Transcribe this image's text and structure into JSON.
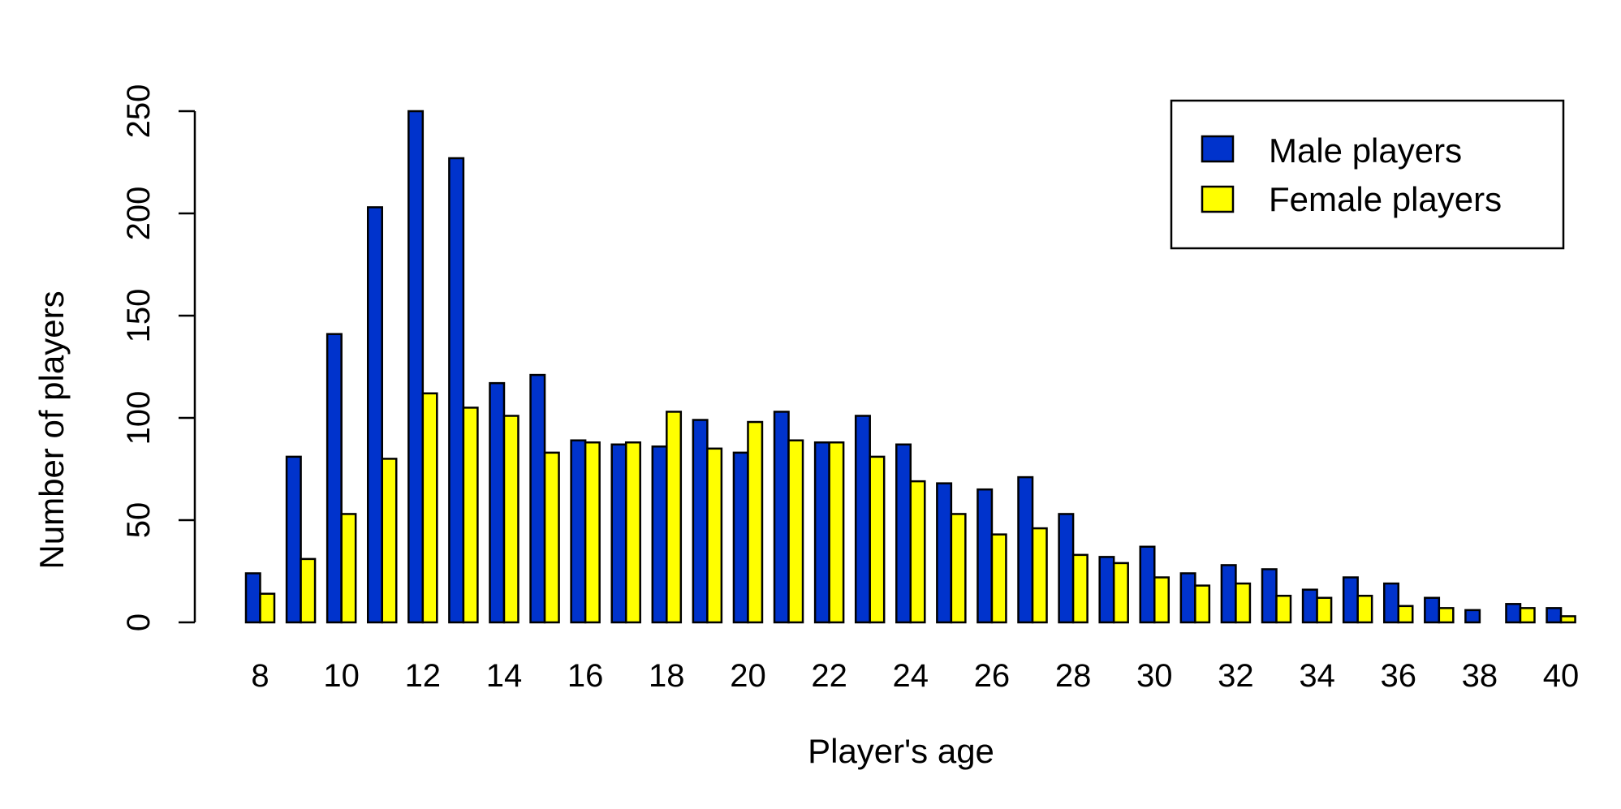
{
  "chart_data": {
    "type": "bar",
    "xlabel": "Player's age",
    "ylabel": "Number of players",
    "ylim": [
      0,
      250
    ],
    "y_ticks": [
      0,
      50,
      100,
      150,
      200,
      250
    ],
    "x_tick_labels": [
      "8",
      "10",
      "12",
      "14",
      "16",
      "18",
      "20",
      "22",
      "24",
      "26",
      "28",
      "30",
      "32",
      "34",
      "36",
      "38",
      "40"
    ],
    "categories": [
      8,
      9,
      10,
      11,
      12,
      13,
      14,
      15,
      16,
      17,
      18,
      19,
      20,
      21,
      22,
      23,
      24,
      25,
      26,
      27,
      28,
      29,
      30,
      31,
      32,
      33,
      34,
      35,
      36,
      37,
      38,
      39,
      40
    ],
    "grid": false,
    "legend_position": "top-right",
    "series": [
      {
        "name": "Male players",
        "color": "#0033cc",
        "values": [
          24,
          81,
          141,
          203,
          250,
          227,
          117,
          121,
          89,
          87,
          86,
          99,
          83,
          103,
          88,
          101,
          87,
          68,
          65,
          71,
          53,
          32,
          37,
          24,
          28,
          26,
          16,
          22,
          19,
          12,
          6,
          9,
          7
        ]
      },
      {
        "name": "Female players",
        "color": "#ffff00",
        "values": [
          14,
          31,
          53,
          80,
          112,
          105,
          101,
          83,
          88,
          88,
          103,
          85,
          98,
          89,
          88,
          81,
          69,
          53,
          43,
          46,
          33,
          29,
          22,
          18,
          19,
          13,
          12,
          13,
          8,
          7,
          0,
          7,
          3
        ]
      }
    ]
  }
}
